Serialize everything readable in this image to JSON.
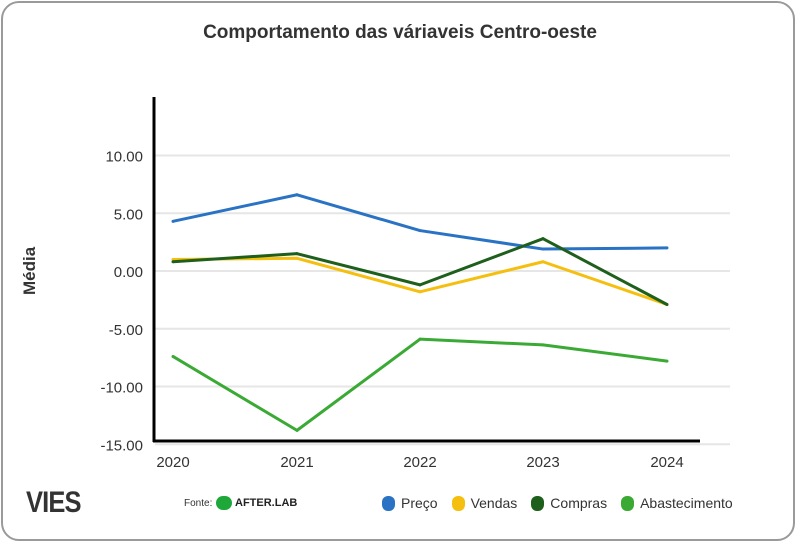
{
  "chart_data": {
    "type": "line",
    "title": "Comportamento das váriaveis Centro-oeste",
    "xlabel": "",
    "ylabel": "Média",
    "x": [
      "2020",
      "2021",
      "2022",
      "2023",
      "2024"
    ],
    "yticks": [
      "10.00",
      "5.00",
      "0.00",
      "-5.00",
      "-10.00",
      "-15.00"
    ],
    "ytick_values": [
      10,
      5,
      0,
      -5,
      -10,
      -15
    ],
    "ylim": [
      -15,
      14
    ],
    "grid": true,
    "legend_position": "bottom",
    "series": [
      {
        "name": "Preço",
        "color": "#2a73c4",
        "values": [
          4.3,
          6.6,
          3.5,
          1.9,
          2.0
        ]
      },
      {
        "name": "Vendas",
        "color": "#f5bf10",
        "values": [
          1.0,
          1.1,
          -1.8,
          0.8,
          -2.9
        ]
      },
      {
        "name": "Compras",
        "color": "#1f5f1c",
        "values": [
          0.8,
          1.5,
          -1.2,
          2.8,
          -2.9
        ]
      },
      {
        "name": "Abastecimento",
        "color": "#3aaa35",
        "values": [
          -7.4,
          -13.8,
          -5.9,
          -6.4,
          -7.8
        ]
      }
    ]
  },
  "footer": {
    "brand": "VIES",
    "source_label": "Fonte:",
    "source_name": "AFTER.LAB"
  }
}
